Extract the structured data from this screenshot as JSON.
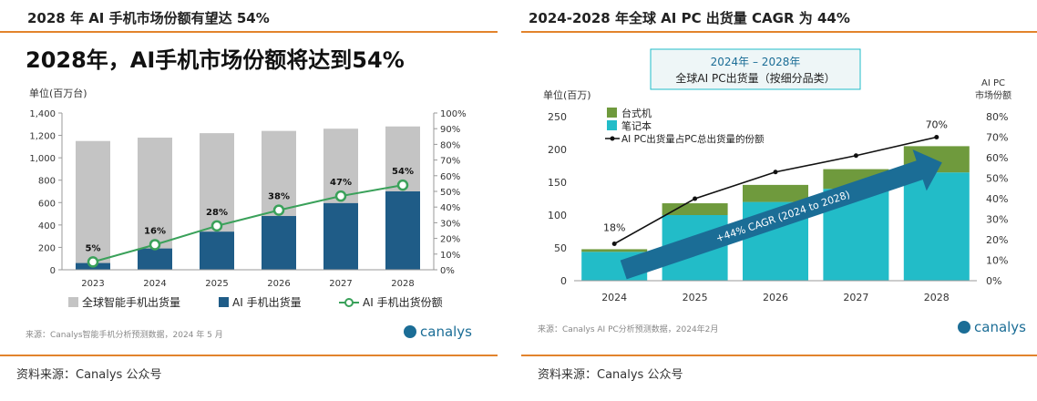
{
  "left_panel": {
    "header": "2028 年 AI 手机市场份额有望达 54%",
    "source": "资料来源：Canalys 公众号",
    "chart_data": {
      "type": "bar",
      "title": "2028年，AI手机市场份额将达到54%",
      "ylabel": "单位(百万台)",
      "categories": [
        "2023",
        "2024",
        "2025",
        "2026",
        "2027",
        "2028"
      ],
      "ylim": [
        0,
        1400
      ],
      "yticks": [
        "0",
        "200",
        "400",
        "600",
        "800",
        "1,000",
        "1,200",
        "1,400"
      ],
      "y2lim": [
        0,
        100
      ],
      "y2ticks": [
        "0%",
        "10%",
        "20%",
        "30%",
        "40%",
        "50%",
        "60%",
        "70%",
        "80%",
        "90%",
        "100%"
      ],
      "series": [
        {
          "name": "全球智能手机出货量",
          "kind": "bar",
          "values": [
            1150,
            1180,
            1220,
            1240,
            1260,
            1280
          ]
        },
        {
          "name": "AI 手机出货量",
          "kind": "bar",
          "values": [
            60,
            190,
            340,
            480,
            595,
            700
          ]
        },
        {
          "name": "AI 手机出货份额",
          "kind": "line",
          "axis": "right",
          "values": [
            5,
            16,
            28,
            38,
            47,
            54
          ],
          "labels": [
            "5%",
            "16%",
            "28%",
            "38%",
            "47%",
            "54%"
          ]
        }
      ],
      "legend_position": "bottom",
      "footnote": "来源：Canalys智能手机分析预测数据，2024 年 5 月",
      "logo": "canalys",
      "colors": {
        "total": "#c4c4c4",
        "ai": "#1f5c87",
        "share": "#3aa15a"
      }
    }
  },
  "right_panel": {
    "header": "2024-2028 年全球 AI PC 出货量 CAGR 为 44%",
    "source": "资料来源：Canalys 公众号",
    "chart_data": {
      "type": "bar",
      "title_line1": "2024年 – 2028年",
      "title_line2": "全球AI PC出货量（按细分品类）",
      "ylabel": "单位(百万)",
      "y2label_line1": "AI PC",
      "y2label_line2": "市场份额",
      "categories": [
        "2024",
        "2025",
        "2026",
        "2027",
        "2028"
      ],
      "ylim": [
        0,
        250
      ],
      "yticks": [
        "0",
        "50",
        "100",
        "150",
        "200",
        "250"
      ],
      "y2lim": [
        0,
        80
      ],
      "y2ticks": [
        "0%",
        "10%",
        "20%",
        "30%",
        "40%",
        "50%",
        "60%",
        "70%",
        "80%"
      ],
      "series": [
        {
          "name": "笔记本",
          "kind": "bar",
          "values": [
            44,
            100,
            120,
            140,
            165
          ]
        },
        {
          "name": "台式机",
          "kind": "bar",
          "values": [
            4,
            18,
            26,
            30,
            40
          ]
        },
        {
          "name": "AI PC出货量占PC总出货量的份额",
          "kind": "line",
          "axis": "right",
          "values": [
            18,
            40,
            53,
            61,
            70
          ]
        }
      ],
      "point_labels": {
        "first": "18%",
        "last": "70%"
      },
      "arrow_label": "+44% CAGR (2024 to 2028)",
      "legend_position": "top-left",
      "footnote": "来源：Canalys AI PC分析预测数据，2024年2月",
      "logo": "canalys",
      "colors": {
        "desktop": "#6f9a3d",
        "notebook": "#22bcc8",
        "arrow": "#1b6d96",
        "line": "#111111"
      }
    }
  }
}
